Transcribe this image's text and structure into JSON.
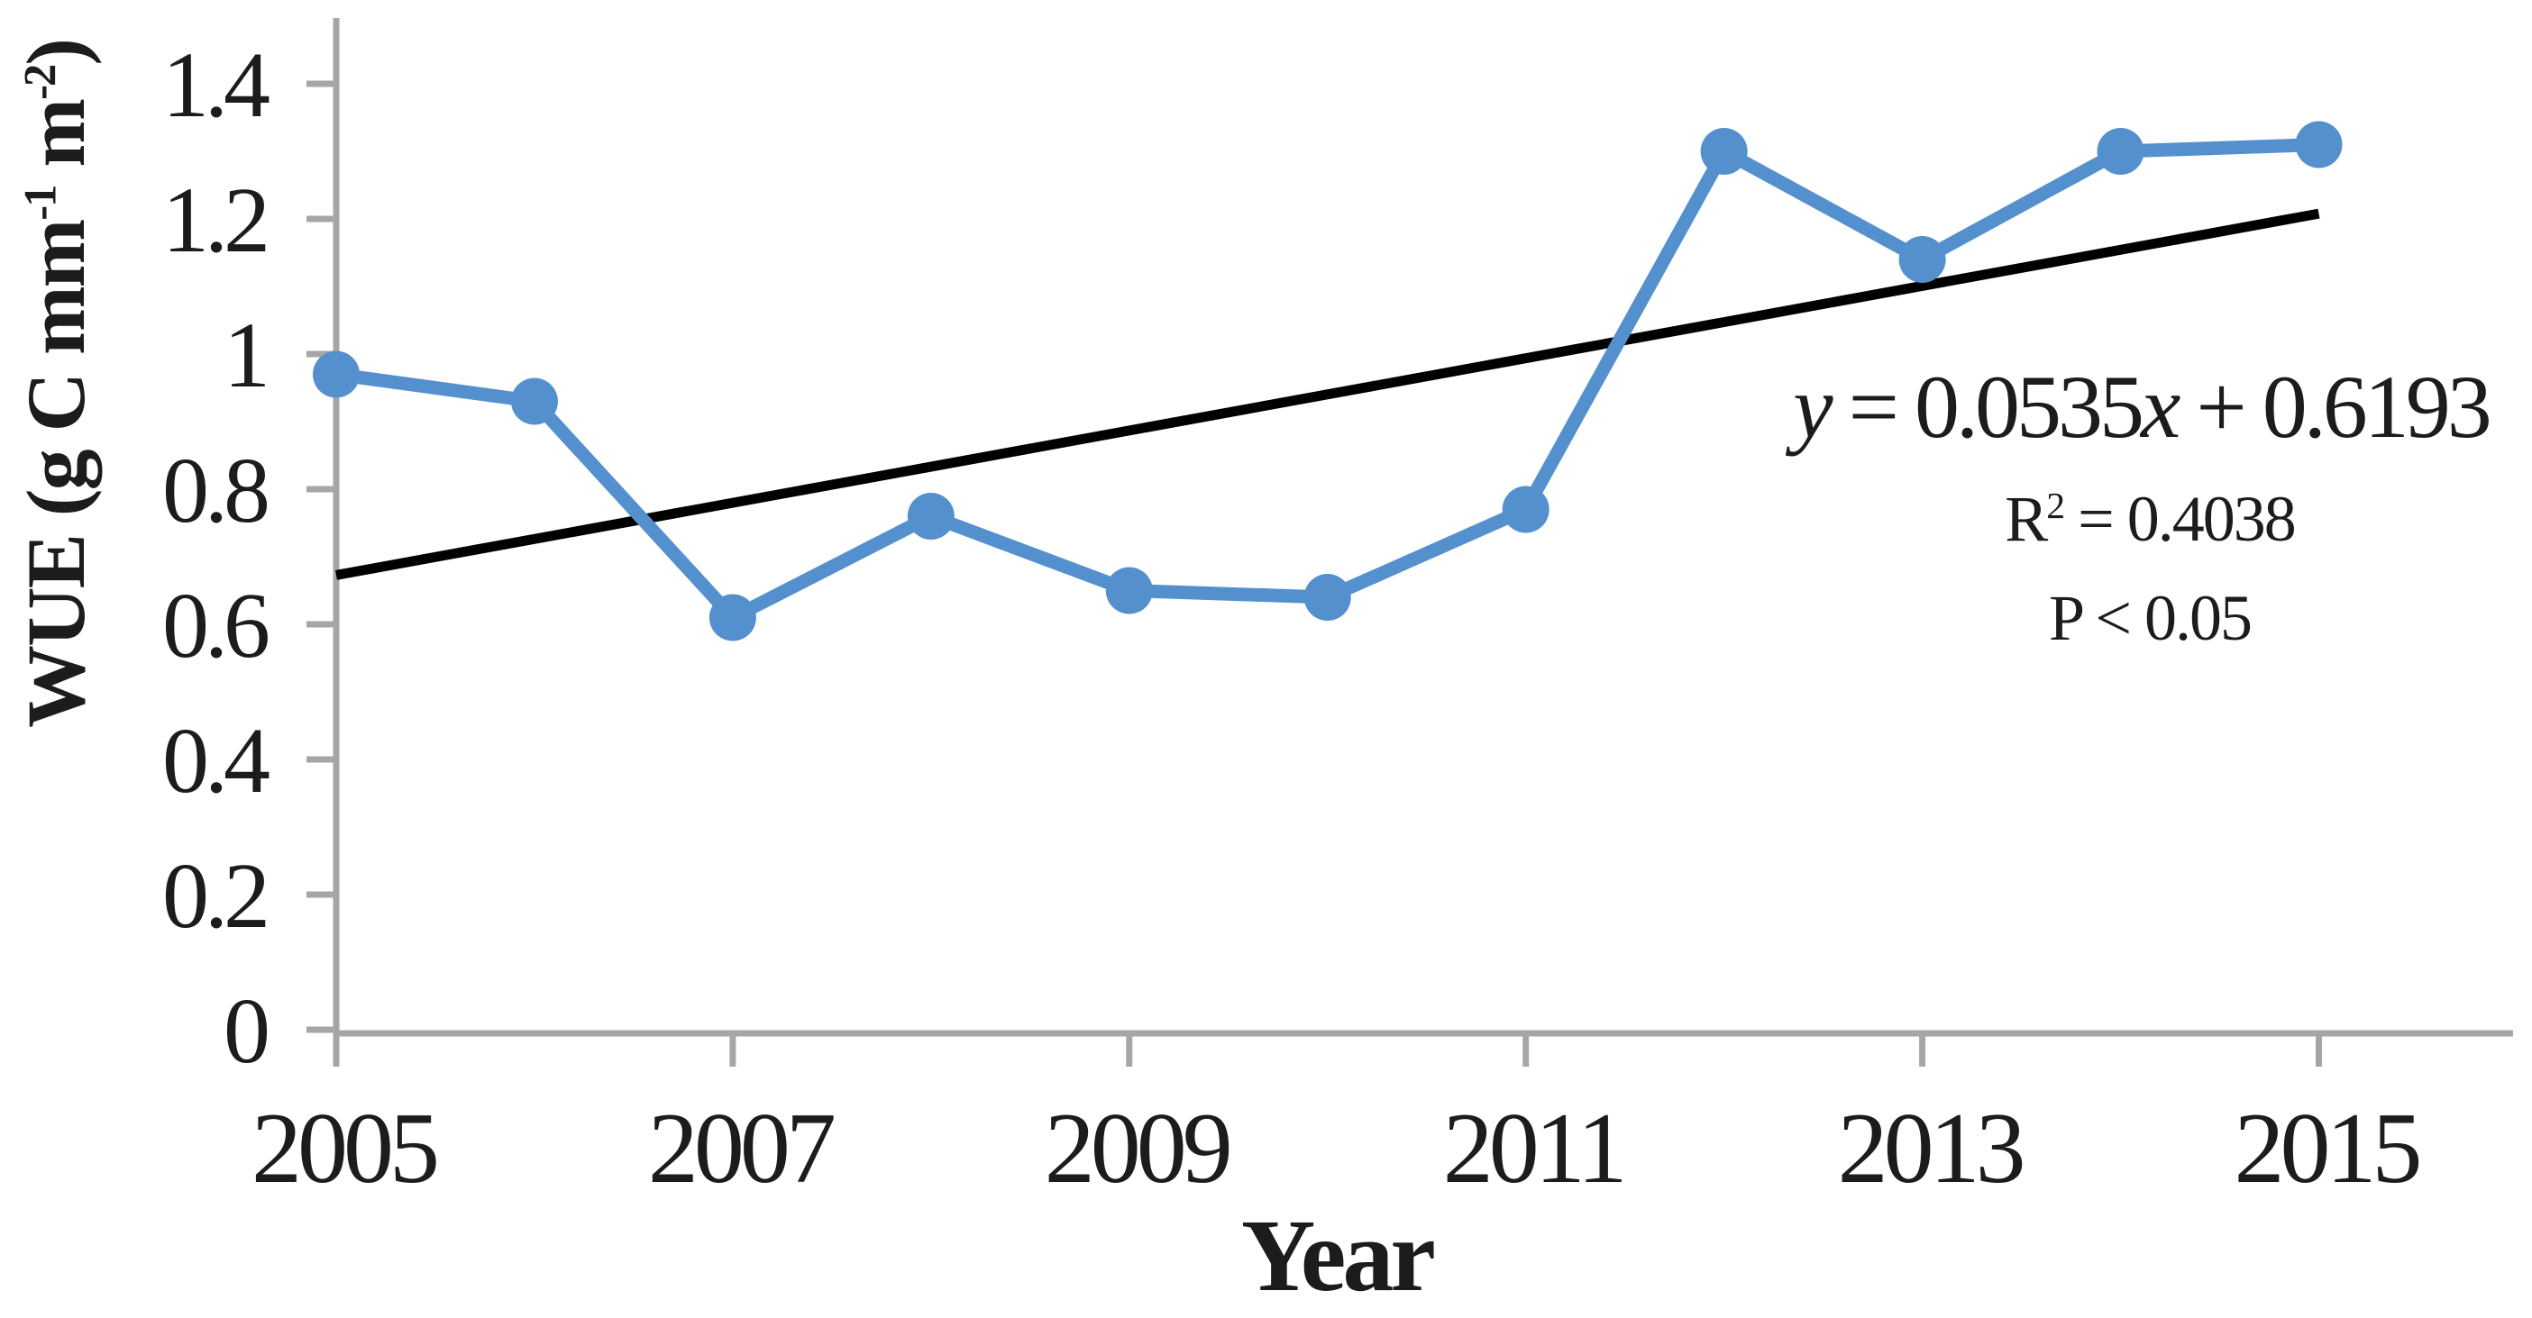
{
  "figure": {
    "y_axis": {
      "title": {
        "pre": "WUE  (g C mm",
        "sup1": "-1",
        "mid": " m",
        "sup2": "-2",
        "post": ")"
      }
    },
    "x_axis": {
      "title": "Year"
    },
    "annotation": {
      "equation": {
        "var1": "y",
        "part2": " = 0.0535",
        "var2": "x",
        "part3": " + 0.6193"
      },
      "r2": {
        "letter": "R",
        "sup": "2",
        "rest": " = 0.4038"
      },
      "p": "P < 0.05"
    },
    "colors": {
      "series": "#5490CE",
      "trend": "#000000",
      "axis": "#A6A6A6",
      "text": "#1C1C1C"
    }
  },
  "chart_data": {
    "type": "line",
    "title": "",
    "xlabel": "Year",
    "ylabel": "WUE (g C mm-1 m-2)",
    "x": [
      2005,
      2006,
      2007,
      2008,
      2009,
      2010,
      2011,
      2012,
      2013,
      2014,
      2015
    ],
    "series": [
      {
        "name": "WUE",
        "color": "#5490CE",
        "values": [
          0.97,
          0.93,
          0.61,
          0.76,
          0.65,
          0.64,
          0.77,
          1.3,
          1.14,
          1.3,
          1.31
        ]
      }
    ],
    "ylim": [
      0,
      1.5
    ],
    "yticks": [
      0,
      0.2,
      0.4,
      0.6,
      0.8,
      1,
      1.2,
      1.4
    ],
    "ytick_labels": [
      "0",
      "0.2",
      "0.4",
      "0.6",
      "0.8",
      "1",
      "1.2",
      "1.4"
    ],
    "xticks": [
      2005,
      2007,
      2009,
      2011,
      2013,
      2015
    ],
    "xtick_labels": [
      "2005",
      "2007",
      "2009",
      "2011",
      "2013",
      "2015"
    ],
    "grid": false,
    "legend": false,
    "trendline": {
      "type": "linear",
      "slope": 0.0535,
      "intercept": 0.6193,
      "x_index_start": 1,
      "x_index_end": 11,
      "equation": "y = 0.0535x + 0.6193",
      "r_squared": 0.4038,
      "p_label": "P < 0.05",
      "color": "#000000"
    }
  }
}
